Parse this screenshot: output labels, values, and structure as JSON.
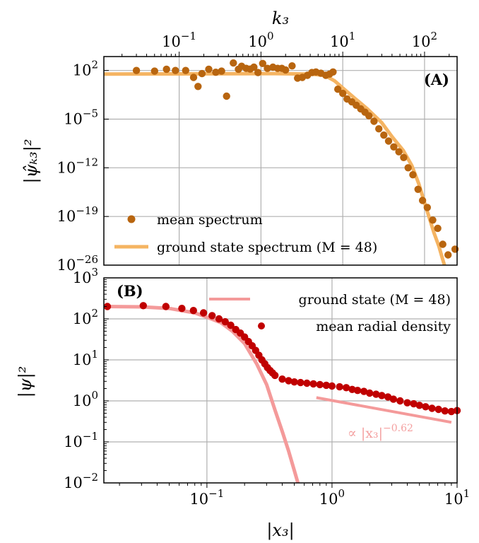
{
  "chart_data": [
    {
      "panel": "A",
      "type": "scatter",
      "panel_label": "(A)",
      "xlabel_top": "k₃",
      "ylabel": "|ψ̂ₖ₃|²",
      "x_scale": "log",
      "y_scale": "log",
      "xlim": [
        0.012,
        250
      ],
      "ylim": [
        1e-26,
        10000.0
      ],
      "x_ticks": [
        {
          "value": 0.1,
          "base": "10",
          "exp": "−1"
        },
        {
          "value": 1,
          "base": "10",
          "exp": "0"
        },
        {
          "value": 10,
          "base": "10",
          "exp": "1"
        },
        {
          "value": 100,
          "base": "10",
          "exp": "2"
        }
      ],
      "y_ticks": [
        {
          "value": 100,
          "base": "10",
          "exp": "2"
        },
        {
          "value": 1e-05,
          "base": "10",
          "exp": "−5"
        },
        {
          "value": 1e-12,
          "base": "10",
          "exp": "−12"
        },
        {
          "value": 1e-19,
          "base": "10",
          "exp": "−19"
        },
        {
          "value": 1e-26,
          "base": "10",
          "exp": "−26"
        }
      ],
      "grid": true,
      "legend_position": "lower-left",
      "series": [
        {
          "name": "mean spectrum",
          "kind": "scatter",
          "color": "#b8650f",
          "points": [
            [
              0.03,
              100
            ],
            [
              0.05,
              80
            ],
            [
              0.07,
              150
            ],
            [
              0.09,
              100
            ],
            [
              0.12,
              100
            ],
            [
              0.15,
              10
            ],
            [
              0.17,
              0.5
            ],
            [
              0.19,
              35
            ],
            [
              0.23,
              150
            ],
            [
              0.28,
              55
            ],
            [
              0.33,
              80
            ],
            [
              0.38,
              0.02
            ],
            [
              0.46,
              1200
            ],
            [
              0.53,
              150
            ],
            [
              0.58,
              400
            ],
            [
              0.66,
              200
            ],
            [
              0.74,
              160
            ],
            [
              0.82,
              300
            ],
            [
              0.92,
              50
            ],
            [
              1.05,
              1000
            ],
            [
              1.2,
              200
            ],
            [
              1.4,
              300
            ],
            [
              1.6,
              200
            ],
            [
              1.8,
              200
            ],
            [
              2.0,
              120
            ],
            [
              2.4,
              450
            ],
            [
              2.8,
              8
            ],
            [
              3.2,
              10
            ],
            [
              3.7,
              20
            ],
            [
              4.2,
              50
            ],
            [
              4.7,
              60
            ],
            [
              5.4,
              40
            ],
            [
              6.2,
              20
            ],
            [
              6.9,
              30
            ],
            [
              7.6,
              60
            ],
            [
              8.7,
              0.2
            ],
            [
              10,
              0.05
            ],
            [
              11.3,
              0.008
            ],
            [
              12.9,
              0.003
            ],
            [
              14.6,
              0.001
            ],
            [
              16.6,
              0.0003
            ],
            [
              18.7,
              0.0001
            ],
            [
              20.9,
              3e-05
            ],
            [
              24.1,
              5e-06
            ],
            [
              27.6,
              4e-07
            ],
            [
              31.8,
              5e-08
            ],
            [
              36.3,
              7e-09
            ],
            [
              42.1,
              1e-09
            ],
            [
              48.6,
              2e-10
            ],
            [
              55.6,
              3e-11
            ],
            [
              63,
              1e-12
            ],
            [
              72,
              1e-13
            ],
            [
              83.3,
              8e-16
            ],
            [
              94.6,
              2e-17
            ],
            [
              108,
              2e-18
            ],
            [
              126,
              3e-20
            ],
            [
              145,
              2e-21
            ],
            [
              167,
              1e-23
            ],
            [
              194,
              3e-25
            ],
            [
              236,
              2e-24
            ]
          ]
        },
        {
          "name": "ground state spectrum (M = 48)",
          "kind": "line",
          "color": "#f5b462",
          "points": [
            [
              0.012,
              30
            ],
            [
              1.5,
              35
            ],
            [
              4,
              30
            ],
            [
              6,
              20
            ],
            [
              8,
              3
            ],
            [
              10,
              0.3
            ],
            [
              14,
              0.01
            ],
            [
              20,
              0.0003
            ],
            [
              30,
              3e-06
            ],
            [
              40,
              3e-08
            ],
            [
              55,
              3e-10
            ],
            [
              70,
              2e-12
            ],
            [
              85,
              5e-15
            ],
            [
              100,
              1e-17
            ],
            [
              115,
              5e-20
            ],
            [
              130,
              5e-22
            ],
            [
              150,
              5e-24
            ],
            [
              165,
              1e-25
            ],
            [
              175,
              1e-26
            ]
          ]
        }
      ]
    },
    {
      "panel": "B",
      "type": "scatter",
      "panel_label": "(B)",
      "xlabel": "|x₃|",
      "ylabel": "|ψ|²",
      "x_scale": "log",
      "y_scale": "log",
      "xlim": [
        0.015,
        10
      ],
      "ylim": [
        0.01,
        1000
      ],
      "x_ticks": [
        {
          "value": 0.1,
          "base": "10",
          "exp": "−1"
        },
        {
          "value": 1,
          "base": "10",
          "exp": "0"
        },
        {
          "value": 10,
          "base": "10",
          "exp": "1"
        }
      ],
      "y_ticks": [
        {
          "value": 1000,
          "base": "10",
          "exp": "3"
        },
        {
          "value": 100,
          "base": "10",
          "exp": "2"
        },
        {
          "value": 10,
          "base": "10",
          "exp": "1"
        },
        {
          "value": 1,
          "base": "10",
          "exp": "0"
        },
        {
          "value": 0.1,
          "base": "10",
          "exp": "−1"
        },
        {
          "value": 0.01,
          "base": "10",
          "exp": "−2"
        }
      ],
      "grid": true,
      "legend_position": "top-right",
      "annotation": {
        "text_prefix": "∝ |x₃|",
        "exp": "−0.62",
        "x": 1.5,
        "y": 0.05,
        "color": "#f4a0a0"
      },
      "series": [
        {
          "name": "ground state (M = 48)",
          "kind": "line",
          "color": "#f49a9a",
          "points": [
            [
              0.015,
              200
            ],
            [
              0.03,
              196
            ],
            [
              0.05,
              180
            ],
            [
              0.08,
              140
            ],
            [
              0.1,
              110
            ],
            [
              0.13,
              80
            ],
            [
              0.16,
              50
            ],
            [
              0.2,
              25
            ],
            [
              0.25,
              8
            ],
            [
              0.3,
              2.5
            ],
            [
              0.35,
              0.6
            ],
            [
              0.4,
              0.18
            ],
            [
              0.45,
              0.06
            ],
            [
              0.5,
              0.02
            ],
            [
              0.56,
              0.006
            ]
          ]
        },
        {
          "name": "mean radial density",
          "kind": "scatter",
          "color": "#c00000",
          "points": [
            [
              0.016,
              200
            ],
            [
              0.031,
              210
            ],
            [
              0.047,
              200
            ],
            [
              0.063,
              180
            ],
            [
              0.078,
              160
            ],
            [
              0.094,
              140
            ],
            [
              0.11,
              120
            ],
            [
              0.125,
              100
            ],
            [
              0.14,
              85
            ],
            [
              0.155,
              70
            ],
            [
              0.17,
              55
            ],
            [
              0.185,
              45
            ],
            [
              0.2,
              36
            ],
            [
              0.215,
              28
            ],
            [
              0.23,
              22
            ],
            [
              0.245,
              17
            ],
            [
              0.26,
              13
            ],
            [
              0.275,
              10
            ],
            [
              0.29,
              8
            ],
            [
              0.305,
              6.5
            ],
            [
              0.32,
              5.5
            ],
            [
              0.335,
              4.8
            ],
            [
              0.35,
              4.2
            ],
            [
              0.4,
              3.4
            ],
            [
              0.45,
              3.1
            ],
            [
              0.5,
              2.9
            ],
            [
              0.56,
              2.8
            ],
            [
              0.63,
              2.7
            ],
            [
              0.71,
              2.6
            ],
            [
              0.8,
              2.5
            ],
            [
              0.9,
              2.4
            ],
            [
              1.0,
              2.3
            ],
            [
              1.15,
              2.2
            ],
            [
              1.3,
              2.1
            ],
            [
              1.45,
              1.9
            ],
            [
              1.6,
              1.8
            ],
            [
              1.8,
              1.7
            ],
            [
              2.0,
              1.55
            ],
            [
              2.25,
              1.45
            ],
            [
              2.5,
              1.35
            ],
            [
              2.8,
              1.25
            ],
            [
              3.1,
              1.1
            ],
            [
              3.5,
              1.0
            ],
            [
              4.0,
              0.9
            ],
            [
              4.5,
              0.85
            ],
            [
              5.0,
              0.78
            ],
            [
              5.6,
              0.72
            ],
            [
              6.3,
              0.66
            ],
            [
              7.1,
              0.62
            ],
            [
              8.0,
              0.57
            ],
            [
              9.0,
              0.55
            ],
            [
              10.0,
              0.58
            ]
          ]
        },
        {
          "name": "power-law guide",
          "kind": "guide",
          "color": "#f49a9a",
          "points": [
            [
              0.75,
              1.2
            ],
            [
              9.0,
              0.3
            ]
          ]
        }
      ]
    }
  ]
}
